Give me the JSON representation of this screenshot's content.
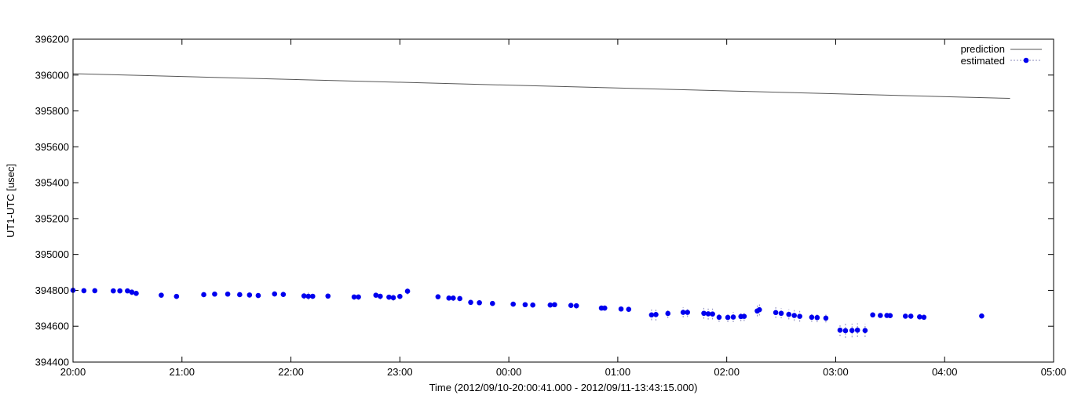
{
  "chart_data": {
    "type": "scatter",
    "title": "",
    "xlabel": "Time (2012/09/10-20:00:41.000 - 2012/09/11-13:43:15.000)",
    "ylabel": "UT1-UTC [usec]",
    "xlim": [
      0,
      9
    ],
    "ylim": [
      394400,
      396200
    ],
    "x_unit": "hours since 20:00",
    "x_ticks": [
      "20:00",
      "21:00",
      "22:00",
      "23:00",
      "00:00",
      "01:00",
      "02:00",
      "03:00",
      "04:00",
      "05:00"
    ],
    "y_ticks": [
      "394400",
      "394600",
      "394800",
      "395000",
      "395200",
      "395400",
      "395600",
      "395800",
      "396000",
      "396200"
    ],
    "grid": false,
    "legend": {
      "position": "top-right",
      "entries": [
        "prediction",
        "estimated"
      ]
    },
    "colors": {
      "prediction": "#555555",
      "estimated": "#0000ee",
      "errorbar": "#8888bb"
    },
    "series": [
      {
        "name": "prediction",
        "style": "line",
        "x": [
          0.0,
          8.6
        ],
        "y": [
          396008,
          395870
        ]
      },
      {
        "name": "estimated",
        "style": "points-errorbars",
        "x": [
          0.0,
          0.1,
          0.2,
          0.37,
          0.43,
          0.5,
          0.54,
          0.58,
          0.81,
          0.95,
          1.2,
          1.3,
          1.42,
          1.53,
          1.62,
          1.7,
          1.85,
          1.93,
          2.12,
          2.16,
          2.2,
          2.34,
          2.58,
          2.62,
          2.78,
          2.82,
          2.9,
          2.94,
          3.0,
          3.07,
          3.35,
          3.45,
          3.49,
          3.55,
          3.65,
          3.73,
          3.85,
          4.04,
          4.15,
          4.22,
          4.38,
          4.42,
          4.57,
          4.62,
          4.85,
          4.88,
          5.03,
          5.1,
          5.31,
          5.35,
          5.46,
          5.6,
          5.64,
          5.79,
          5.83,
          5.87,
          5.93,
          6.01,
          6.06,
          6.13,
          6.16,
          6.28,
          6.3,
          6.45,
          6.5,
          6.57,
          6.62,
          6.67,
          6.78,
          6.83,
          6.91,
          7.04,
          7.09,
          7.15,
          7.2,
          7.27,
          7.34,
          7.41,
          7.47,
          7.5,
          7.64,
          7.69,
          7.77,
          7.81,
          8.34
        ],
        "y": [
          394800,
          394798,
          394798,
          394797,
          394797,
          394797,
          394790,
          394783,
          394773,
          394766,
          394776,
          394779,
          394779,
          394776,
          394774,
          394771,
          394780,
          394777,
          394769,
          394767,
          394767,
          394768,
          394763,
          394763,
          394773,
          394767,
          394762,
          394759,
          394766,
          394795,
          394764,
          394757,
          394757,
          394754,
          394733,
          394731,
          394727,
          394723,
          394720,
          394718,
          394718,
          394720,
          394716,
          394714,
          394701,
          394701,
          394696,
          394694,
          394663,
          394665,
          394671,
          394677,
          394677,
          394672,
          394669,
          394668,
          394650,
          394649,
          394651,
          394654,
          394655,
          394685,
          394692,
          394676,
          394672,
          394666,
          394660,
          394655,
          394650,
          394648,
          394645,
          394578,
          394575,
          394576,
          394578,
          394576,
          394663,
          394660,
          394660,
          394659,
          394656,
          394656,
          394652,
          394650,
          394657
        ],
        "err": [
          12,
          10,
          12,
          10,
          10,
          10,
          18,
          14,
          14,
          14,
          14,
          12,
          12,
          12,
          14,
          14,
          14,
          12,
          18,
          20,
          16,
          12,
          16,
          16,
          16,
          18,
          14,
          18,
          14,
          18,
          12,
          14,
          16,
          14,
          12,
          12,
          12,
          12,
          10,
          10,
          12,
          12,
          12,
          16,
          12,
          12,
          14,
          14,
          30,
          34,
          26,
          28,
          26,
          30,
          32,
          30,
          26,
          26,
          28,
          26,
          26,
          30,
          32,
          30,
          28,
          28,
          30,
          30,
          26,
          26,
          24,
          34,
          40,
          38,
          38,
          36,
          12,
          12,
          12,
          12,
          12,
          12,
          10,
          10,
          12
        ]
      }
    ]
  }
}
